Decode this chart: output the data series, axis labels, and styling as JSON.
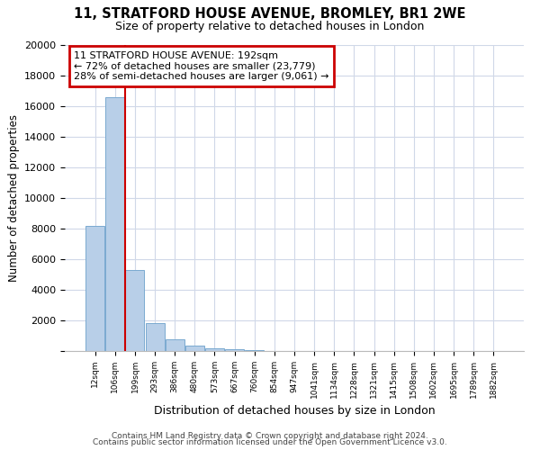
{
  "title1": "11, STRATFORD HOUSE AVENUE, BROMLEY, BR1 2WE",
  "title2": "Size of property relative to detached houses in London",
  "xlabel": "Distribution of detached houses by size in London",
  "ylabel": "Number of detached properties",
  "categories": [
    "12sqm",
    "106sqm",
    "199sqm",
    "293sqm",
    "386sqm",
    "480sqm",
    "573sqm",
    "667sqm",
    "760sqm",
    "854sqm",
    "947sqm",
    "1041sqm",
    "1134sqm",
    "1228sqm",
    "1321sqm",
    "1415sqm",
    "1508sqm",
    "1602sqm",
    "1695sqm",
    "1789sqm",
    "1882sqm"
  ],
  "bar_values": [
    8200,
    16600,
    5300,
    1850,
    780,
    330,
    200,
    120,
    60,
    0,
    0,
    0,
    0,
    0,
    0,
    0,
    0,
    0,
    0,
    0,
    0
  ],
  "bar_color": "#b8cfe8",
  "bar_edge_color": "#7aaad0",
  "red_line_x": 1.5,
  "annotation_text": "11 STRATFORD HOUSE AVENUE: 192sqm\n← 72% of detached houses are smaller (23,779)\n28% of semi-detached houses are larger (9,061) →",
  "annotation_box_color": "#ffffff",
  "annotation_box_edge": "#cc0000",
  "red_line_color": "#cc0000",
  "ylim": [
    0,
    20000
  ],
  "yticks": [
    0,
    2000,
    4000,
    6000,
    8000,
    10000,
    12000,
    14000,
    16000,
    18000,
    20000
  ],
  "footer1": "Contains HM Land Registry data © Crown copyright and database right 2024.",
  "footer2": "Contains public sector information licensed under the Open Government Licence v3.0.",
  "bg_color": "#ffffff",
  "grid_color": "#d0d8e8"
}
